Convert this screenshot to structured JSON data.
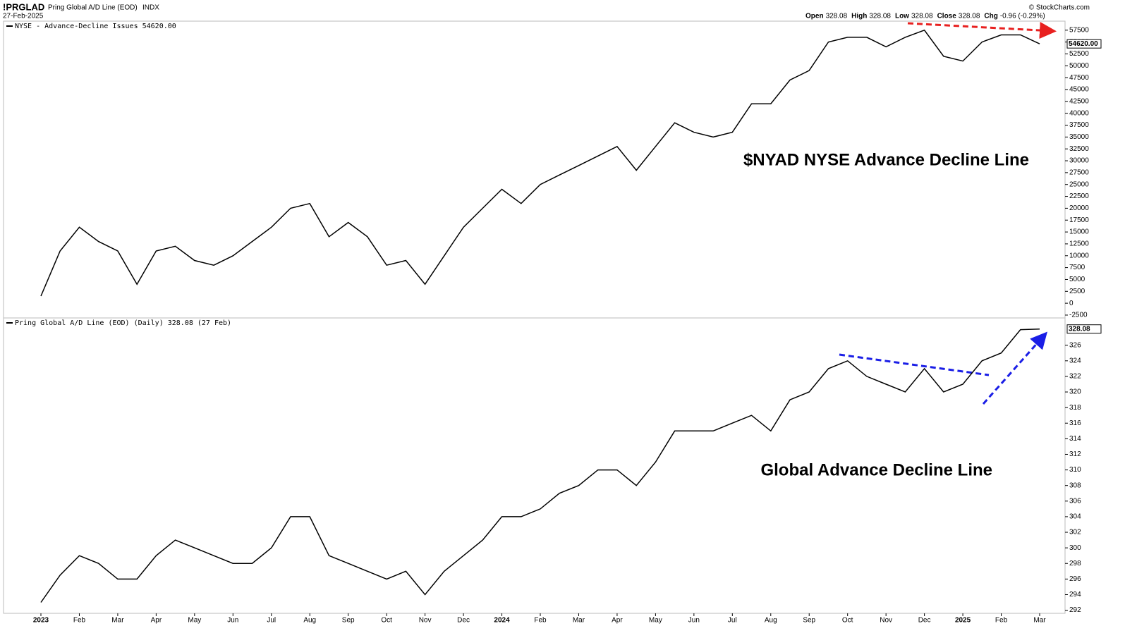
{
  "header": {
    "symbol": "!PRGLAD",
    "name": "Pring Global A/D Line (EOD)",
    "exchange": "INDX",
    "date": "27-Feb-2025",
    "copyright": "© StockCharts.com",
    "quote": [
      {
        "label": "Open",
        "value": "328.08"
      },
      {
        "label": "High",
        "value": "328.08"
      },
      {
        "label": "Low",
        "value": "328.08"
      },
      {
        "label": "Close",
        "value": "328.08"
      },
      {
        "label": "Chg",
        "value": "-0.96 (-0.29%)"
      }
    ]
  },
  "chart_data": [
    {
      "type": "line",
      "legend": "NYSE - Advance-Decline Issues 54620.00",
      "annotation": "$NYAD NYSE Advance Decline Line",
      "last_label": "54620.00",
      "ylim": [
        -3100,
        59400
      ],
      "yticks": [
        -2500,
        0,
        2500,
        5000,
        7500,
        10000,
        12500,
        15000,
        17500,
        20000,
        22500,
        25000,
        27500,
        30000,
        32500,
        35000,
        37500,
        40000,
        42500,
        45000,
        47500,
        50000,
        52500,
        55000,
        57500
      ],
      "series": [
        {
          "name": "NYSE - Advance-Decline Issues",
          "color": "#000000",
          "values": [
            1500,
            11000,
            16000,
            13000,
            11000,
            4000,
            11000,
            12000,
            9000,
            8000,
            10000,
            13000,
            16000,
            20000,
            21000,
            14000,
            17000,
            14000,
            8000,
            9000,
            4000,
            10000,
            16000,
            20000,
            24000,
            21000,
            25000,
            27000,
            29000,
            31000,
            33000,
            28000,
            33000,
            38000,
            36000,
            35000,
            36000,
            42000,
            42000,
            47000,
            49000,
            55000,
            56000,
            56000,
            54000,
            56000,
            57500,
            52000,
            51000,
            55000,
            56500,
            56500,
            54620
          ]
        }
      ]
    },
    {
      "type": "line",
      "legend": "Pring Global A/D Line (EOD) (Daily) 328.08 (27 Feb)",
      "annotation": "Global Advance Decline Line",
      "last_label": "328.08",
      "ylim": [
        291.6,
        329.5
      ],
      "yticks": [
        292,
        294,
        296,
        298,
        300,
        302,
        304,
        306,
        308,
        310,
        312,
        314,
        316,
        318,
        320,
        322,
        324,
        326
      ],
      "categories": [
        "2023",
        null,
        "Feb",
        null,
        "Mar",
        null,
        "Apr",
        null,
        "May",
        null,
        "Jun",
        null,
        "Jul",
        null,
        "Aug",
        null,
        "Sep",
        null,
        "Oct",
        null,
        "Nov",
        null,
        "Dec",
        null,
        "2024",
        null,
        "Feb",
        null,
        "Mar",
        null,
        "Apr",
        null,
        "May",
        null,
        "Jun",
        null,
        "Jul",
        null,
        "Aug",
        null,
        "Sep",
        null,
        "Oct",
        null,
        "Nov",
        null,
        "Dec",
        null,
        "2025",
        null,
        "Feb",
        null,
        "Mar"
      ],
      "series": [
        {
          "name": "Pring Global A/D Line (EOD)",
          "color": "#000000",
          "values": [
            293,
            296.5,
            299,
            298,
            296,
            296,
            299,
            301,
            300,
            299,
            298,
            298,
            300,
            304,
            304,
            299,
            298,
            297,
            296,
            297,
            294,
            297,
            299,
            301,
            304,
            304,
            305,
            307,
            308,
            310,
            310,
            308,
            311,
            315,
            315,
            315,
            316,
            317,
            315,
            319,
            320,
            323,
            324,
            322,
            321,
            320,
            323,
            320,
            321,
            324,
            325,
            328,
            328.08
          ]
        }
      ]
    }
  ]
}
